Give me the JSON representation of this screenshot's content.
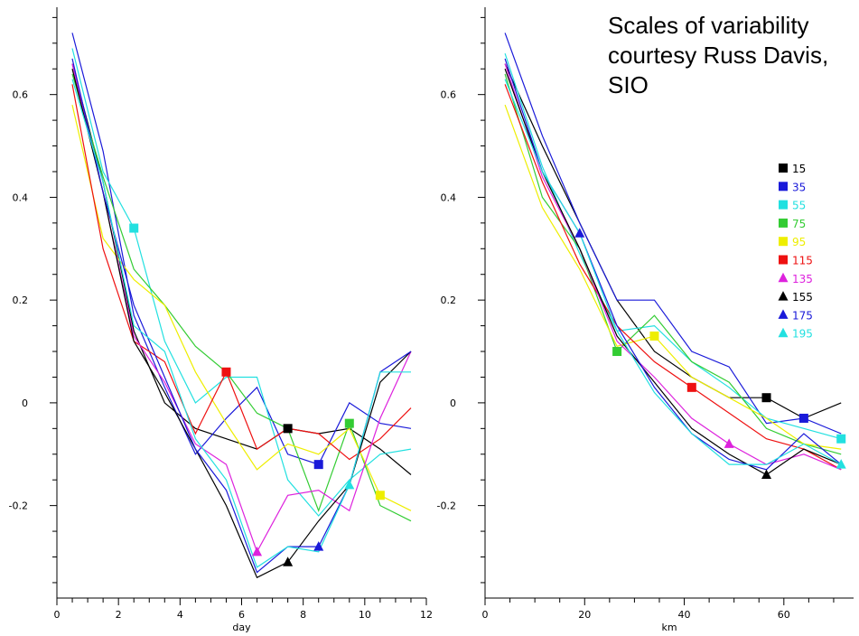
{
  "caption": "Scales of variability courtesy Russ Davis, SIO",
  "series_colors": {
    "15": "#000000",
    "35": "#1a1ad9",
    "55": "#22e0e0",
    "75": "#33cc33",
    "95": "#eeee00",
    "115": "#ee1111",
    "135": "#dd22dd",
    "155": "#000000",
    "175": "#1a1ad9",
    "195": "#22e0e0"
  },
  "chart_data": [
    {
      "type": "line",
      "xlabel": "day",
      "ylabel": "",
      "xlim": [
        0,
        12
      ],
      "ylim": [
        -0.38,
        0.77
      ],
      "xticks": [
        0,
        2,
        4,
        6,
        8,
        10,
        12
      ],
      "xtick_labels": [
        "0",
        "2",
        "4",
        "6",
        "8",
        "10",
        "12"
      ],
      "yticks": [
        -0.2,
        0,
        0.2,
        0.4,
        0.6
      ],
      "ytick_labels": [
        "-0.2",
        "0",
        "0.2",
        "0.4",
        "0.6"
      ],
      "x": [
        0.5,
        1.5,
        2.5,
        3.5,
        4.5,
        5.5,
        6.5,
        7.5,
        8.5,
        9.5,
        10.5,
        11.5
      ],
      "series": [
        {
          "name": "15",
          "marker": "square",
          "marker_index": 7,
          "values": [
            0.66,
            0.43,
            0.14,
            0.0,
            -0.05,
            -0.07,
            -0.09,
            -0.05,
            -0.06,
            -0.05,
            -0.09,
            -0.14
          ]
        },
        {
          "name": "35",
          "marker": "square",
          "marker_index": 8,
          "values": [
            0.72,
            0.49,
            0.17,
            0.03,
            -0.1,
            -0.03,
            0.03,
            -0.1,
            -0.12,
            0.0,
            -0.04,
            -0.05
          ]
        },
        {
          "name": "55",
          "marker": "square",
          "marker_index": 2,
          "values": [
            0.69,
            0.45,
            0.34,
            0.12,
            0.0,
            0.05,
            0.05,
            -0.15,
            -0.22,
            -0.15,
            -0.1,
            -0.09
          ]
        },
        {
          "name": "75",
          "marker": "square",
          "marker_index": 9,
          "values": [
            0.64,
            0.44,
            0.26,
            0.19,
            0.11,
            0.06,
            -0.02,
            -0.05,
            -0.21,
            -0.04,
            -0.2,
            -0.23
          ]
        },
        {
          "name": "95",
          "marker": "square",
          "marker_index": 10,
          "values": [
            0.58,
            0.32,
            0.24,
            0.19,
            0.06,
            -0.04,
            -0.13,
            -0.08,
            -0.1,
            -0.05,
            -0.18,
            -0.21
          ]
        },
        {
          "name": "115",
          "marker": "square",
          "marker_index": 5,
          "values": [
            0.62,
            0.3,
            0.12,
            0.08,
            -0.06,
            0.06,
            -0.09,
            -0.05,
            -0.06,
            -0.11,
            -0.07,
            -0.01
          ]
        },
        {
          "name": "135",
          "marker": "triangle",
          "marker_index": 6,
          "values": [
            0.66,
            0.41,
            0.13,
            0.04,
            -0.08,
            -0.12,
            -0.29,
            -0.18,
            -0.17,
            -0.21,
            -0.03,
            0.1
          ]
        },
        {
          "name": "155",
          "marker": "triangle",
          "marker_index": 7,
          "values": [
            0.65,
            0.41,
            0.12,
            0.02,
            -0.09,
            -0.2,
            -0.34,
            -0.31,
            -0.23,
            -0.16,
            0.04,
            0.1
          ]
        },
        {
          "name": "175",
          "marker": "triangle",
          "marker_index": 8,
          "values": [
            0.67,
            0.41,
            0.19,
            0.05,
            -0.09,
            -0.17,
            -0.33,
            -0.28,
            -0.28,
            -0.16,
            0.06,
            0.1
          ]
        },
        {
          "name": "195",
          "marker": "triangle",
          "marker_index": 9,
          "values": [
            0.63,
            0.43,
            0.15,
            0.1,
            -0.07,
            -0.15,
            -0.32,
            -0.28,
            -0.29,
            -0.16,
            0.06,
            0.06
          ]
        }
      ]
    },
    {
      "type": "line",
      "xlabel": "km",
      "ylabel": "",
      "xlim": [
        0,
        74
      ],
      "ylim": [
        -0.38,
        0.77
      ],
      "xticks": [
        0,
        20,
        40,
        60
      ],
      "xtick_labels": [
        "0",
        "20",
        "40",
        "60"
      ],
      "yticks": [
        -0.2,
        0,
        0.2,
        0.4,
        0.6
      ],
      "ytick_labels": [
        "-0.2",
        "0",
        "0.2",
        "0.4",
        "0.6"
      ],
      "x": [
        4,
        11.5,
        19,
        26.5,
        34,
        41.5,
        49,
        56.5,
        64,
        71.5
      ],
      "legend": {
        "position": "top-right",
        "labels": [
          "15",
          "35",
          "55",
          "75",
          "95",
          "115",
          "135",
          "155",
          "175",
          "195"
        ]
      },
      "series": [
        {
          "name": "15",
          "marker": "square",
          "marker_index": 7,
          "values": [
            0.66,
            0.5,
            0.35,
            0.2,
            0.1,
            0.05,
            0.01,
            0.01,
            -0.03,
            0.0
          ]
        },
        {
          "name": "35",
          "marker": "square",
          "marker_index": 8,
          "values": [
            0.72,
            0.52,
            0.35,
            0.2,
            0.2,
            0.1,
            0.07,
            -0.04,
            -0.03,
            -0.06
          ]
        },
        {
          "name": "55",
          "marker": "square",
          "marker_index": 9,
          "values": [
            0.68,
            0.46,
            0.29,
            0.14,
            0.15,
            0.08,
            0.03,
            -0.03,
            -0.05,
            -0.07
          ]
        },
        {
          "name": "75",
          "marker": "square",
          "marker_index": 3,
          "values": [
            0.64,
            0.4,
            0.3,
            0.1,
            0.17,
            0.08,
            0.04,
            -0.05,
            -0.08,
            -0.1
          ]
        },
        {
          "name": "95",
          "marker": "square",
          "marker_index": 4,
          "values": [
            0.58,
            0.38,
            0.26,
            0.11,
            0.13,
            0.05,
            0.01,
            -0.03,
            -0.08,
            -0.09
          ]
        },
        {
          "name": "115",
          "marker": "square",
          "marker_index": 5,
          "values": [
            0.62,
            0.43,
            0.27,
            0.15,
            0.08,
            0.03,
            -0.02,
            -0.07,
            -0.09,
            -0.13
          ]
        },
        {
          "name": "135",
          "marker": "triangle",
          "marker_index": 6,
          "values": [
            0.66,
            0.44,
            0.3,
            0.12,
            0.05,
            -0.03,
            -0.08,
            -0.12,
            -0.1,
            -0.13
          ]
        },
        {
          "name": "155",
          "marker": "triangle",
          "marker_index": 7,
          "values": [
            0.65,
            0.45,
            0.3,
            0.13,
            0.04,
            -0.05,
            -0.1,
            -0.14,
            -0.09,
            -0.12
          ]
        },
        {
          "name": "175",
          "marker": "triangle",
          "marker_index": 2,
          "values": [
            0.67,
            0.45,
            0.33,
            0.15,
            0.03,
            -0.06,
            -0.11,
            -0.13,
            -0.06,
            -0.12
          ]
        },
        {
          "name": "195",
          "marker": "triangle",
          "marker_index": 9,
          "values": [
            0.63,
            0.45,
            0.33,
            0.14,
            0.02,
            -0.06,
            -0.12,
            -0.12,
            -0.08,
            -0.12
          ]
        }
      ]
    }
  ]
}
